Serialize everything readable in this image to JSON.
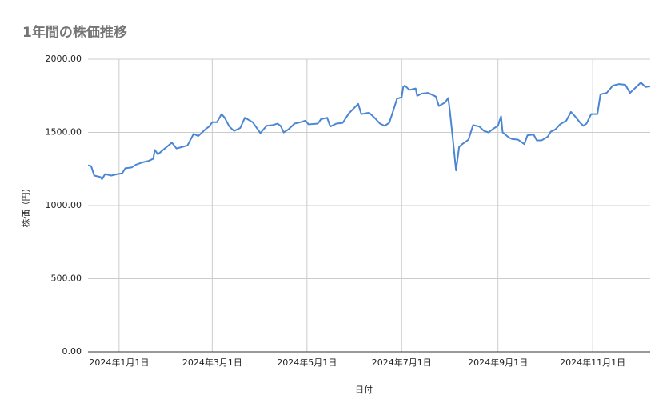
{
  "chart_data": {
    "type": "line",
    "title": "1年間の株価推移",
    "x_label": "日付",
    "y_label": "株価（円）",
    "series": [
      {
        "name": "株価",
        "color": "#4a86d4",
        "x": [
          "2023-12-12",
          "2023-12-14",
          "2023-12-16",
          "2023-12-20",
          "2023-12-21",
          "2023-12-23",
          "2023-12-27",
          "2023-12-31",
          "2024-01-03",
          "2024-01-05",
          "2024-01-09",
          "2024-01-12",
          "2024-01-16",
          "2024-01-20",
          "2024-01-23",
          "2024-01-24",
          "2024-01-26",
          "2024-01-31",
          "2024-02-04",
          "2024-02-07",
          "2024-02-14",
          "2024-02-18",
          "2024-02-21",
          "2024-02-26",
          "2024-02-28",
          "2024-03-01",
          "2024-03-04",
          "2024-03-07",
          "2024-03-09",
          "2024-03-12",
          "2024-03-15",
          "2024-03-19",
          "2024-03-22",
          "2024-03-27",
          "2024-03-30",
          "2024-04-01",
          "2024-04-05",
          "2024-04-09",
          "2024-04-12",
          "2024-04-14",
          "2024-04-16",
          "2024-04-19",
          "2024-04-23",
          "2024-04-27",
          "2024-04-30",
          "2024-05-02",
          "2024-05-08",
          "2024-05-10",
          "2024-05-14",
          "2024-05-16",
          "2024-05-20",
          "2024-05-24",
          "2024-05-28",
          "2024-06-03",
          "2024-06-05",
          "2024-06-10",
          "2024-06-14",
          "2024-06-17",
          "2024-06-20",
          "2024-06-23",
          "2024-06-25",
          "2024-06-28",
          "2024-07-01",
          "2024-07-02",
          "2024-07-03",
          "2024-07-06",
          "2024-07-10",
          "2024-07-11",
          "2024-07-14",
          "2024-07-18",
          "2024-07-23",
          "2024-07-25",
          "2024-07-29",
          "2024-07-31",
          "2024-08-01",
          "2024-08-03",
          "2024-08-05",
          "2024-08-07",
          "2024-08-09",
          "2024-08-13",
          "2024-08-16",
          "2024-08-20",
          "2024-08-23",
          "2024-08-26",
          "2024-08-29",
          "2024-09-01",
          "2024-09-03",
          "2024-09-04",
          "2024-09-08",
          "2024-09-10",
          "2024-09-14",
          "2024-09-18",
          "2024-09-20",
          "2024-09-24",
          "2024-09-26",
          "2024-09-29",
          "2024-10-03",
          "2024-10-05",
          "2024-10-08",
          "2024-10-11",
          "2024-10-15",
          "2024-10-18",
          "2024-10-21",
          "2024-10-24",
          "2024-10-26",
          "2024-10-28",
          "2024-10-31",
          "2024-11-04",
          "2024-11-06",
          "2024-11-10",
          "2024-11-14",
          "2024-11-18",
          "2024-11-22",
          "2024-11-25",
          "2024-11-28",
          "2024-12-02",
          "2024-12-05",
          "2024-12-08"
        ],
        "values": [
          1275,
          1270,
          1205,
          1195,
          1180,
          1215,
          1205,
          1215,
          1220,
          1255,
          1260,
          1280,
          1295,
          1305,
          1320,
          1380,
          1350,
          1395,
          1430,
          1390,
          1410,
          1490,
          1475,
          1525,
          1540,
          1570,
          1570,
          1625,
          1600,
          1540,
          1510,
          1530,
          1600,
          1570,
          1525,
          1495,
          1545,
          1550,
          1560,
          1545,
          1500,
          1520,
          1560,
          1570,
          1580,
          1555,
          1560,
          1590,
          1600,
          1540,
          1560,
          1565,
          1630,
          1695,
          1625,
          1635,
          1595,
          1560,
          1545,
          1565,
          1630,
          1730,
          1740,
          1810,
          1820,
          1790,
          1800,
          1750,
          1765,
          1770,
          1745,
          1680,
          1705,
          1735,
          1650,
          1450,
          1240,
          1400,
          1420,
          1450,
          1550,
          1540,
          1510,
          1500,
          1525,
          1545,
          1610,
          1500,
          1465,
          1455,
          1450,
          1420,
          1480,
          1485,
          1445,
          1445,
          1470,
          1505,
          1520,
          1555,
          1580,
          1640,
          1605,
          1565,
          1545,
          1560,
          1625,
          1625,
          1760,
          1770,
          1820,
          1830,
          1825,
          1770,
          1800,
          1840,
          1810,
          1815
        ]
      }
    ],
    "xlim": [
      "2023-12-12",
      "2024-12-08"
    ],
    "xticks": [
      {
        "value": "2024-01-01",
        "label": "2024年1月1日"
      },
      {
        "value": "2024-03-01",
        "label": "2024年3月1日"
      },
      {
        "value": "2024-05-01",
        "label": "2024年5月1日"
      },
      {
        "value": "2024-07-01",
        "label": "2024年7月1日"
      },
      {
        "value": "2024-09-01",
        "label": "2024年9月1日"
      },
      {
        "value": "2024-11-01",
        "label": "2024年11月1日"
      }
    ],
    "ylim": [
      0,
      2000
    ],
    "yticks": [
      {
        "value": 0,
        "label": "0.00"
      },
      {
        "value": 500,
        "label": "500.00"
      },
      {
        "value": 1000,
        "label": "1000.00"
      },
      {
        "value": 1500,
        "label": "1500.00"
      },
      {
        "value": 2000,
        "label": "2000.00"
      }
    ],
    "grid": true
  }
}
